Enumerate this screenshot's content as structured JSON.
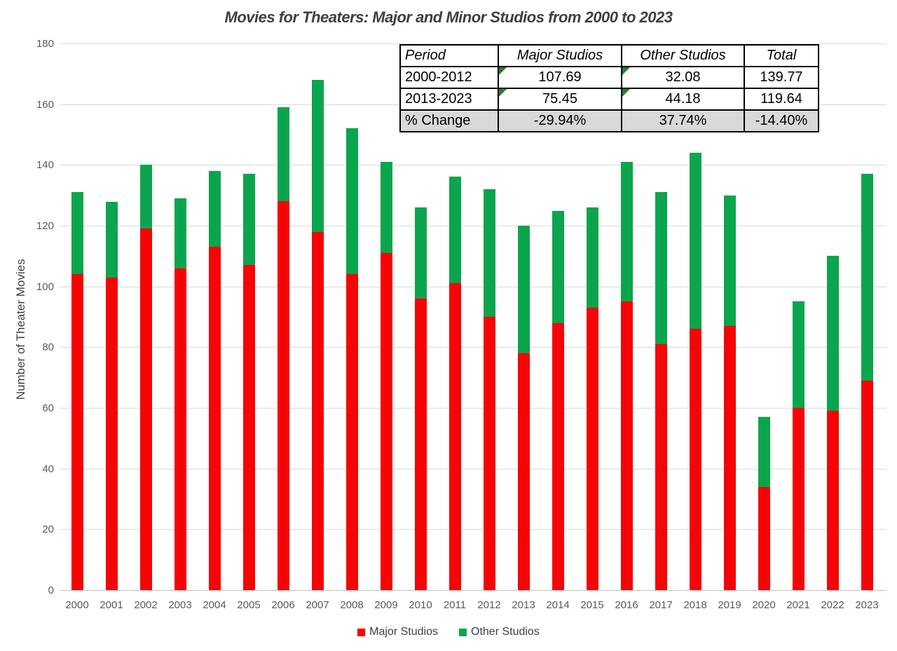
{
  "title": "Movies for Theaters: Major and Minor Studios from 2000 to 2023",
  "y_axis_title": "Number of Theater Movies",
  "colors": {
    "major": "#f50505",
    "other": "#0ba54e",
    "flag_triangle": "#217d36",
    "gridline": "#d9d9d9",
    "axis_text": "#595959",
    "shaded_row": "#d9d9d9"
  },
  "legend": {
    "items": [
      {
        "label": "Major Studios",
        "color": "#f50505"
      },
      {
        "label": "Other Studios",
        "color": "#0ba54e"
      }
    ]
  },
  "summary_table": {
    "headers": [
      "Period",
      "Major Studios",
      "Other Studios",
      "Total"
    ],
    "rows": [
      {
        "shaded": false,
        "cells": [
          {
            "v": "2000-2012",
            "flag": false
          },
          {
            "v": "107.69",
            "flag": true
          },
          {
            "v": "32.08",
            "flag": true
          },
          {
            "v": "139.77",
            "flag": false
          }
        ]
      },
      {
        "shaded": false,
        "cells": [
          {
            "v": "2013-2023",
            "flag": false
          },
          {
            "v": "75.45",
            "flag": true
          },
          {
            "v": "44.18",
            "flag": true
          },
          {
            "v": "119.64",
            "flag": false
          }
        ]
      },
      {
        "shaded": true,
        "cells": [
          {
            "v": "% Change",
            "flag": false
          },
          {
            "v": "-29.94%",
            "flag": false
          },
          {
            "v": "37.74%",
            "flag": false
          },
          {
            "v": "-14.40%",
            "flag": false
          }
        ]
      }
    ]
  },
  "chart_data": {
    "type": "bar",
    "stacked": true,
    "title": "Movies for Theaters: Major and Minor Studios from 2000 to 2023",
    "xlabel": "",
    "ylabel": "Number of Theater Movies",
    "ylim": [
      0,
      180
    ],
    "ytick_step": 20,
    "grid": true,
    "legend_position": "bottom",
    "categories": [
      "2000",
      "2001",
      "2002",
      "2003",
      "2004",
      "2005",
      "2006",
      "2007",
      "2008",
      "2009",
      "2010",
      "2011",
      "2012",
      "2013",
      "2014",
      "2015",
      "2016",
      "2017",
      "2018",
      "2019",
      "2020",
      "2021",
      "2022",
      "2023"
    ],
    "series": [
      {
        "name": "Major Studios",
        "color": "#f50505",
        "values": [
          104,
          103,
          119,
          106,
          113,
          107,
          128,
          118,
          104,
          111,
          96,
          101,
          90,
          78,
          88,
          93,
          95,
          81,
          86,
          87,
          34,
          60,
          59,
          69
        ]
      },
      {
        "name": "Other Studios",
        "color": "#0ba54e",
        "values": [
          27,
          25,
          21,
          23,
          25,
          30,
          31,
          50,
          48,
          30,
          30,
          35,
          42,
          42,
          37,
          33,
          46,
          50,
          58,
          43,
          23,
          35,
          51,
          68
        ]
      }
    ],
    "totals": [
      131,
      128,
      140,
      129,
      138,
      137,
      159,
      168,
      152,
      141,
      126,
      136,
      132,
      120,
      125,
      126,
      141,
      131,
      144,
      130,
      57,
      95,
      110,
      137
    ]
  }
}
